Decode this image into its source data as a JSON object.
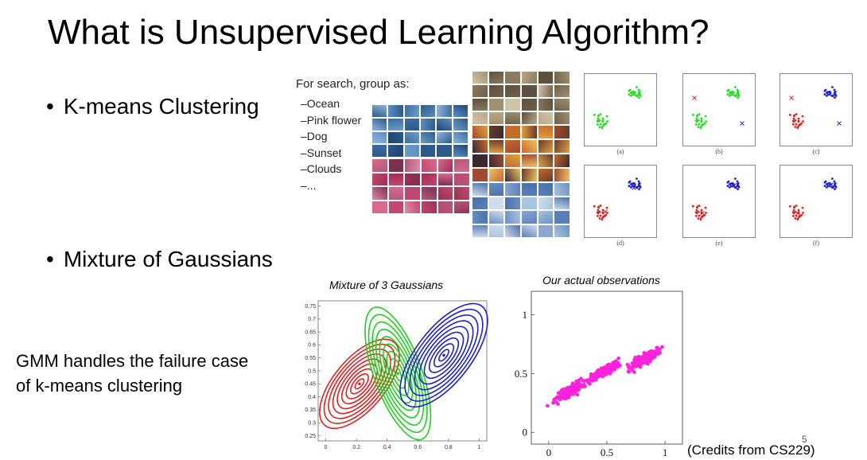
{
  "slide": {
    "title": "What is Unsupervised Learning Algorithm?",
    "bullet_kmeans": "K-means Clustering",
    "bullet_gmm": "Mixture of Gaussians",
    "gmm_note_line1": "GMM handles the failure case",
    "gmm_note_line2": "of k-means clustering",
    "page_number": "5",
    "credits": "(Credits from CS229)"
  },
  "search_example": {
    "heading": "For search, group as:",
    "groups": [
      "Ocean",
      "Pink flower",
      "Dog",
      "Sunset",
      "Clouds",
      "..."
    ]
  },
  "kmeans_panels": {
    "labels": [
      "(a)",
      "(b)",
      "(c)",
      "(d)",
      "(e)",
      "(f)"
    ],
    "colors": {
      "green": "#22dd22",
      "red": "#dd2222",
      "blue": "#2222cc"
    }
  },
  "chart_data": [
    {
      "type": "contour",
      "title": "Mixture of 3 Gaussians",
      "xlim": [
        -0.05,
        1.05
      ],
      "ylim": [
        0.23,
        0.77
      ],
      "x_ticks": [
        "0",
        "0.2",
        "0.4",
        "0.6",
        "0.8",
        "1"
      ],
      "y_ticks": [
        "0.75",
        "0.7",
        "0.65",
        "0.6",
        "0.55",
        "0.5",
        "0.45",
        "0.4",
        "0.35",
        "0.3",
        "0.25"
      ],
      "components": [
        {
          "color": "#e02020",
          "center": [
            0.22,
            0.45
          ]
        },
        {
          "color": "#20d020",
          "center": [
            0.47,
            0.49
          ]
        },
        {
          "color": "#2020d0",
          "center": [
            0.77,
            0.56
          ]
        }
      ]
    },
    {
      "type": "scatter",
      "title": "Our actual observations",
      "xlim": [
        -0.15,
        1.15
      ],
      "ylim": [
        -0.1,
        1.2
      ],
      "x_ticks": [
        "0",
        "0.5",
        "1"
      ],
      "y_ticks": [
        "1",
        "0.5",
        "0"
      ],
      "color": "#ff22dd"
    }
  ]
}
